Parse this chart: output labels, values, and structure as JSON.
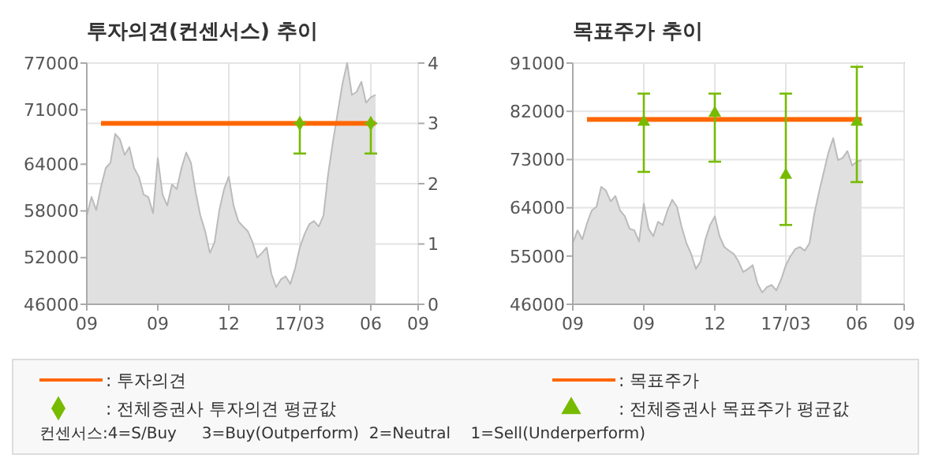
{
  "chart_data": [
    {
      "type": "area",
      "title": "투자의견(컨센서스) 추이",
      "categories": [
        "09",
        null,
        null,
        null,
        null,
        null,
        null,
        null,
        null,
        null,
        null,
        null,
        null,
        null,
        null,
        "09",
        null,
        null,
        null,
        null,
        null,
        null,
        null,
        null,
        null,
        null,
        null,
        null,
        null,
        null,
        "12",
        null,
        null,
        null,
        null,
        null,
        null,
        null,
        null,
        null,
        null,
        null,
        null,
        null,
        null,
        "17/03",
        null,
        null,
        null,
        null,
        null,
        null,
        null,
        null,
        null,
        null,
        null,
        null,
        null,
        null,
        "06",
        null,
        null,
        null,
        null,
        null,
        null,
        null,
        null,
        null,
        "09"
      ],
      "ylim": [
        46000,
        77000
      ],
      "yticks": [
        46000,
        52000,
        58000,
        64000,
        71000,
        77000
      ],
      "y2lim": [
        0,
        4
      ],
      "y2ticks": [
        0,
        1,
        2,
        3,
        4
      ],
      "grid": true,
      "legend": "bottom",
      "annotations": [
        "컨센서스:4=S/Buy     3=Buy(Outperform)  2=Neutral    1=Sell(Underperform)"
      ],
      "series": [
        {
          "color": "#e0e0e0",
          "values": [
            57400,
            59800,
            58100,
            61100,
            63500,
            64200,
            67900,
            67200,
            65200,
            66200,
            63500,
            62400,
            60100,
            59800,
            57700,
            64800,
            60100,
            58700,
            61400,
            60800,
            63500,
            65500,
            64200,
            60400,
            57400,
            55400,
            52600,
            54000,
            58100,
            60800,
            62400,
            58700,
            56700,
            56000,
            55400,
            54000,
            52000,
            52600,
            53300,
            49900,
            48200,
            49200,
            49600,
            48600,
            50600,
            53300,
            55000,
            56300,
            56700,
            56000,
            57400,
            62800,
            66900,
            70600,
            74300,
            77000,
            72900,
            73300,
            74600,
            71900,
            72600,
            72900,
            null,
            null,
            null,
            null,
            null,
            null,
            null,
            null,
            null
          ]
        },
        {
          "type": "line",
          "name": ": 투자의견",
          "color": "#ff6600",
          "axis": "y2",
          "values": [
            null,
            null,
            null,
            3,
            3,
            3,
            3,
            3,
            3,
            3,
            3,
            3,
            3,
            3,
            3,
            3,
            3,
            3,
            3,
            3,
            3,
            3,
            3,
            3,
            3,
            3,
            3,
            3,
            3,
            3,
            3,
            3,
            3,
            3,
            3,
            3,
            3,
            3,
            3,
            3,
            3,
            3,
            3,
            3,
            3,
            3,
            3,
            3,
            3,
            3,
            3,
            3,
            3,
            3,
            3,
            3,
            3,
            3,
            3,
            3,
            3,
            3,
            null,
            null,
            null,
            null,
            null,
            null,
            null,
            null,
            null
          ]
        },
        {
          "type": "scatter",
          "name": ": 전체증권사 투자의견 평균값",
          "color": "#77bb00",
          "marker": "diamond",
          "axis": "y2",
          "values": [
            null,
            null,
            null,
            null,
            null,
            null,
            null,
            null,
            null,
            null,
            null,
            null,
            null,
            null,
            null,
            null,
            null,
            null,
            null,
            null,
            null,
            null,
            null,
            null,
            null,
            null,
            null,
            null,
            null,
            null,
            null,
            null,
            null,
            null,
            null,
            null,
            null,
            null,
            null,
            null,
            null,
            null,
            null,
            null,
            null,
            3,
            null,
            null,
            null,
            null,
            null,
            null,
            null,
            null,
            null,
            null,
            null,
            null,
            null,
            null,
            3,
            null,
            null,
            null,
            null,
            null,
            null,
            null,
            null,
            null,
            null
          ],
          "errors": [
            null,
            null,
            null,
            null,
            null,
            null,
            null,
            null,
            null,
            null,
            null,
            null,
            null,
            null,
            null,
            null,
            null,
            null,
            null,
            null,
            null,
            null,
            null,
            null,
            null,
            null,
            null,
            null,
            null,
            null,
            null,
            null,
            null,
            null,
            null,
            null,
            null,
            null,
            null,
            null,
            null,
            null,
            null,
            null,
            null,
            [
              2.5,
              3
            ],
            null,
            null,
            null,
            null,
            null,
            null,
            null,
            null,
            null,
            null,
            null,
            null,
            null,
            null,
            [
              2.5,
              3
            ],
            null,
            null,
            null,
            null,
            null,
            null,
            null,
            null,
            null,
            null
          ]
        }
      ]
    },
    {
      "type": "area",
      "title": "목표주가 추이",
      "categories": [
        "09",
        null,
        null,
        null,
        null,
        null,
        null,
        null,
        null,
        null,
        null,
        null,
        null,
        null,
        null,
        "09",
        null,
        null,
        null,
        null,
        null,
        null,
        null,
        null,
        null,
        null,
        null,
        null,
        null,
        null,
        "12",
        null,
        null,
        null,
        null,
        null,
        null,
        null,
        null,
        null,
        null,
        null,
        null,
        null,
        null,
        "17/03",
        null,
        null,
        null,
        null,
        null,
        null,
        null,
        null,
        null,
        null,
        null,
        null,
        null,
        null,
        "06",
        null,
        null,
        null,
        null,
        null,
        null,
        null,
        null,
        null,
        "09"
      ],
      "ylim": [
        46000,
        91000
      ],
      "yticks": [
        46000,
        55000,
        64000,
        73000,
        82000,
        91000
      ],
      "grid": true,
      "legend": "bottom",
      "series": [
        {
          "color": "#e0e0e0",
          "values": [
            57400,
            59800,
            58100,
            61100,
            63500,
            64200,
            67900,
            67200,
            65200,
            66200,
            63500,
            62400,
            60100,
            59800,
            57700,
            64800,
            60100,
            58700,
            61400,
            60800,
            63500,
            65500,
            64200,
            60400,
            57400,
            55400,
            52600,
            54000,
            58100,
            60800,
            62400,
            58700,
            56700,
            56000,
            55400,
            54000,
            52000,
            52600,
            53300,
            49900,
            48200,
            49200,
            49600,
            48600,
            50600,
            53300,
            55000,
            56300,
            56700,
            56000,
            57400,
            62800,
            66900,
            70600,
            74300,
            77000,
            72900,
            73300,
            74600,
            71900,
            72600,
            72900,
            null,
            null,
            null,
            null,
            null,
            null,
            null,
            null,
            null
          ]
        },
        {
          "type": "line",
          "name": ": 목표주가",
          "color": "#ff6600",
          "values": [
            null,
            null,
            null,
            80500,
            80500,
            80500,
            80500,
            80500,
            80500,
            80500,
            80500,
            80500,
            80500,
            80500,
            80500,
            80500,
            80500,
            80500,
            80500,
            80500,
            80500,
            80500,
            80500,
            80500,
            80500,
            80500,
            80500,
            80500,
            80500,
            80500,
            80500,
            80500,
            80500,
            80500,
            80500,
            80500,
            80500,
            80500,
            80500,
            80500,
            80500,
            80500,
            80500,
            80500,
            80500,
            80500,
            80500,
            80500,
            80500,
            80500,
            80500,
            80500,
            80500,
            80500,
            80500,
            80500,
            80500,
            80500,
            80500,
            80500,
            80500,
            80500,
            null,
            null,
            null,
            null,
            null,
            null,
            null,
            null,
            null
          ]
        },
        {
          "type": "scatter",
          "name": ": 전체증권사 목표주가 평균값",
          "color": "#77bb00",
          "marker": "triangle",
          "values": [
            null,
            null,
            null,
            null,
            null,
            null,
            null,
            null,
            null,
            null,
            null,
            null,
            null,
            null,
            null,
            80000,
            null,
            null,
            null,
            null,
            null,
            null,
            null,
            null,
            null,
            null,
            null,
            null,
            null,
            null,
            81700,
            null,
            null,
            null,
            null,
            null,
            null,
            null,
            null,
            null,
            null,
            null,
            null,
            null,
            null,
            70100,
            null,
            null,
            null,
            null,
            null,
            null,
            null,
            null,
            null,
            null,
            null,
            null,
            null,
            null,
            80000,
            null,
            null,
            null,
            null,
            null,
            null,
            null,
            null,
            null,
            null
          ],
          "errors": [
            null,
            null,
            null,
            null,
            null,
            null,
            null,
            null,
            null,
            null,
            null,
            null,
            null,
            null,
            null,
            [
              70700,
              85300
            ],
            null,
            null,
            null,
            null,
            null,
            null,
            null,
            null,
            null,
            null,
            null,
            null,
            null,
            null,
            [
              72600,
              85300
            ],
            null,
            null,
            null,
            null,
            null,
            null,
            null,
            null,
            null,
            null,
            null,
            null,
            null,
            null,
            [
              60800,
              85300
            ],
            null,
            null,
            null,
            null,
            null,
            null,
            null,
            null,
            null,
            null,
            null,
            null,
            null,
            null,
            [
              68800,
              90300
            ],
            null,
            null,
            null,
            null,
            null,
            null,
            null,
            null,
            null,
            null
          ]
        }
      ]
    }
  ]
}
